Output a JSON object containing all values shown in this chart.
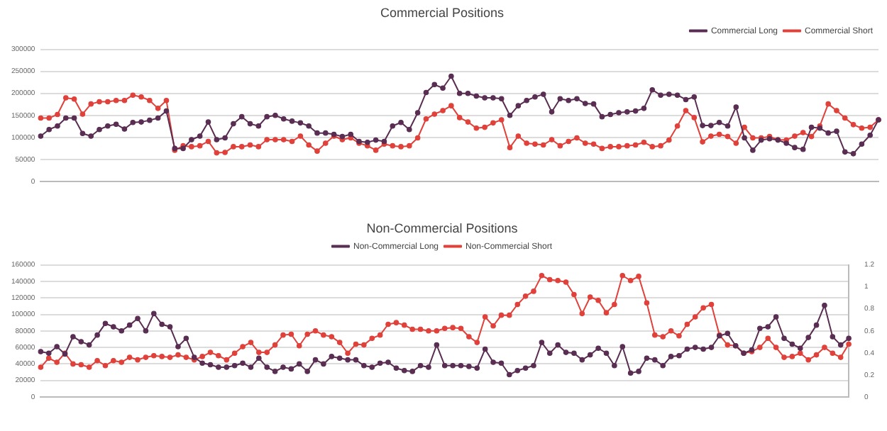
{
  "chart_data": [
    {
      "type": "line",
      "title": "Commercial Positions",
      "categories": [
        null,
        null,
        null,
        null,
        null,
        null,
        null,
        null,
        null,
        null,
        null,
        null,
        null,
        null,
        null,
        null,
        null,
        null,
        null,
        null,
        null,
        null,
        null,
        null,
        null,
        null,
        null,
        null,
        null,
        null,
        null,
        null,
        null,
        null,
        null,
        null,
        null,
        null,
        null,
        null,
        null,
        null,
        null,
        null,
        null,
        null,
        null,
        null,
        null,
        null,
        null,
        null,
        null,
        null,
        null,
        null,
        null,
        null,
        null,
        null,
        null,
        null,
        null,
        null,
        null,
        null,
        null,
        null,
        null,
        null,
        null,
        null,
        null,
        null,
        null,
        null,
        null,
        null,
        null,
        null,
        null,
        null,
        null,
        null,
        null,
        null,
        null,
        null,
        null,
        null,
        null,
        null,
        null,
        null,
        null,
        null,
        null,
        null,
        null,
        null,
        null
      ],
      "series": [
        {
          "name": "Commercial Long",
          "color": "#5a2d52",
          "values": [
            103000,
            118000,
            126000,
            144000,
            144000,
            109000,
            103000,
            118000,
            126000,
            130000,
            119000,
            134000,
            135000,
            139000,
            144000,
            160000,
            75000,
            75000,
            95000,
            103000,
            135000,
            95000,
            99000,
            131000,
            147000,
            131000,
            126000,
            147000,
            150000,
            142000,
            137000,
            133000,
            126000,
            110000,
            110000,
            107000,
            102000,
            107000,
            91000,
            89000,
            94000,
            91000,
            126000,
            134000,
            118000,
            156000,
            202000,
            220000,
            212000,
            239000,
            200000,
            200000,
            194000,
            190000,
            190000,
            188000,
            150000,
            172000,
            184000,
            192000,
            198000,
            158000,
            188000,
            184000,
            188000,
            177000,
            176000,
            147000,
            152000,
            156000,
            158000,
            160000,
            166000,
            208000,
            196000,
            198000,
            196000,
            186000,
            192000,
            127000,
            127000,
            134000,
            126000,
            169000,
            99000,
            71000,
            94000,
            97000,
            94000,
            87000,
            77000,
            73000,
            123000,
            121000,
            110000,
            114000,
            67000,
            63000,
            85000,
            105000,
            140000
          ]
        },
        {
          "name": "Commercial Short",
          "color": "#e0413a",
          "values": [
            144000,
            144000,
            152000,
            190000,
            187000,
            153000,
            176000,
            181000,
            181000,
            184000,
            184000,
            196000,
            192000,
            184000,
            166000,
            184000,
            71000,
            81000,
            79000,
            81000,
            91000,
            65000,
            66000,
            79000,
            79000,
            83000,
            79000,
            95000,
            95000,
            95000,
            91000,
            103000,
            83000,
            69000,
            87000,
            103000,
            95000,
            99000,
            87000,
            81000,
            71000,
            85000,
            81000,
            79000,
            81000,
            99000,
            142000,
            153000,
            161000,
            172000,
            145000,
            135000,
            121000,
            123000,
            133000,
            140000,
            77000,
            103000,
            87000,
            85000,
            83000,
            95000,
            81000,
            91000,
            99000,
            87000,
            85000,
            75000,
            79000,
            79000,
            81000,
            83000,
            89000,
            79000,
            81000,
            94000,
            126000,
            161000,
            145000,
            90000,
            103000,
            107000,
            102000,
            87000,
            123000,
            99000,
            99000,
            102000,
            95000,
            94000,
            103000,
            111000,
            102000,
            126000,
            176000,
            161000,
            144000,
            129000,
            121000,
            123000,
            140000
          ]
        }
      ],
      "ylim": [
        0,
        300000
      ],
      "yticks": [
        0,
        50000,
        100000,
        150000,
        200000,
        250000,
        300000
      ],
      "grid": "y",
      "legend": "top right",
      "marker": "circle"
    },
    {
      "type": "line",
      "title": "Non-Commercial Positions",
      "categories": [
        null,
        null,
        null,
        null,
        null,
        null,
        null,
        null,
        null,
        null,
        null,
        null,
        null,
        null,
        null,
        null,
        null,
        null,
        null,
        null,
        null,
        null,
        null,
        null,
        null,
        null,
        null,
        null,
        null,
        null,
        null,
        null,
        null,
        null,
        null,
        null,
        null,
        null,
        null,
        null,
        null,
        null,
        null,
        null,
        null,
        null,
        null,
        null,
        null,
        null,
        null,
        null,
        null,
        null,
        null,
        null,
        null,
        null,
        null,
        null,
        null,
        null,
        null,
        null,
        null,
        null,
        null,
        null,
        null,
        null,
        null,
        null,
        null,
        null,
        null,
        null,
        null,
        null,
        null,
        null,
        null,
        null,
        null,
        null,
        null,
        null,
        null,
        null,
        null,
        null,
        null,
        null,
        null,
        null,
        null,
        null,
        null,
        null,
        null,
        null,
        null
      ],
      "series": [
        {
          "name": "Non-Commercial Long",
          "color": "#5a2d52",
          "values": [
            55000,
            53000,
            61000,
            52000,
            73000,
            67000,
            63000,
            75000,
            89000,
            85000,
            80000,
            87000,
            95000,
            80000,
            101000,
            88000,
            85000,
            61000,
            71000,
            48000,
            41000,
            39000,
            36000,
            36000,
            38000,
            41000,
            36000,
            47000,
            36000,
            31000,
            36000,
            34000,
            40000,
            31000,
            45000,
            40000,
            49000,
            47000,
            45000,
            45000,
            38000,
            36000,
            41000,
            42000,
            35000,
            32000,
            31000,
            38000,
            36000,
            63000,
            38000,
            38000,
            38000,
            37000,
            35000,
            58000,
            42000,
            41000,
            27000,
            32000,
            35000,
            38000,
            66000,
            53000,
            63000,
            54000,
            53000,
            45000,
            51000,
            59000,
            53000,
            38000,
            61000,
            29000,
            31000,
            47000,
            45000,
            38000,
            49000,
            50000,
            58000,
            60000,
            58000,
            60000,
            74000,
            77000,
            62000,
            53000,
            57000,
            83000,
            85000,
            97000,
            71000,
            64000,
            59000,
            72000,
            87000,
            111000,
            73000,
            63000,
            71000
          ]
        },
        {
          "name": "Non-Commercial Short",
          "color": "#e0413a",
          "values": [
            36000,
            47000,
            42000,
            53000,
            40000,
            39000,
            36000,
            44000,
            38000,
            44000,
            42000,
            48000,
            45000,
            48000,
            50000,
            49000,
            48000,
            51000,
            48000,
            45000,
            49000,
            54000,
            50000,
            45000,
            53000,
            61000,
            66000,
            54000,
            54000,
            63000,
            75000,
            76000,
            62000,
            76000,
            80000,
            75000,
            73000,
            66000,
            53000,
            64000,
            63000,
            71000,
            75000,
            88000,
            90000,
            87000,
            82000,
            82000,
            80000,
            80000,
            83000,
            84000,
            83000,
            73000,
            66000,
            97000,
            86000,
            99000,
            99000,
            112000,
            122000,
            128000,
            147000,
            142000,
            141000,
            139000,
            124000,
            101000,
            121000,
            117000,
            102000,
            112000,
            147000,
            141000,
            146000,
            114000,
            75000,
            73000,
            80000,
            74000,
            88000,
            97000,
            108000,
            112000,
            75000,
            63000,
            62000,
            53000,
            55000,
            60000,
            71000,
            60000,
            48000,
            49000,
            53000,
            45000,
            51000,
            60000,
            53000,
            48000,
            64000
          ]
        }
      ],
      "ylim": [
        0,
        160000
      ],
      "yticks": [
        0,
        20000,
        40000,
        60000,
        80000,
        100000,
        120000,
        140000,
        160000
      ],
      "y2lim": [
        0,
        1.2
      ],
      "y2ticks": [
        0,
        0.2,
        0.4,
        0.6,
        0.8,
        1,
        1.2
      ],
      "grid": "y",
      "legend": "top",
      "marker": "circle"
    }
  ]
}
